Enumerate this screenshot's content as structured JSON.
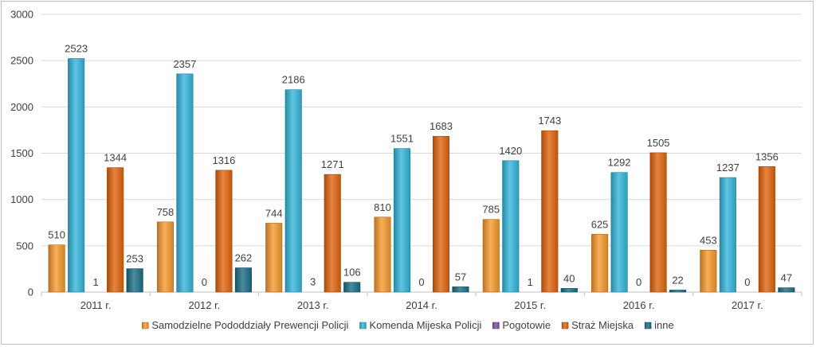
{
  "chart_data": {
    "type": "bar",
    "title": "",
    "xlabel": "",
    "ylabel": "",
    "ylim": [
      0,
      3000
    ],
    "yticks": [
      0,
      500,
      1000,
      1500,
      2000,
      2500,
      3000
    ],
    "grid": true,
    "legend_position": "bottom",
    "categories": [
      "2011 r.",
      "2012 r.",
      "2013 r.",
      "2014 r.",
      "2015 r.",
      "2016 r.",
      "2017 r."
    ],
    "series": [
      {
        "name": "Samodzielne Pododdziały Prewencji Policji",
        "color": "#f79a2e",
        "values": [
          510,
          758,
          744,
          810,
          785,
          625,
          453
        ]
      },
      {
        "name": "Komenda Mijeska Policji",
        "color": "#35b6dc",
        "values": [
          2523,
          2357,
          2186,
          1551,
          1420,
          1292,
          1237
        ]
      },
      {
        "name": "Pogotowie",
        "color": "#7f4fa8",
        "values": [
          1,
          0,
          3,
          0,
          1,
          0,
          0
        ]
      },
      {
        "name": "Straż Miejska",
        "color": "#e2650f",
        "values": [
          1344,
          1316,
          1271,
          1683,
          1743,
          1505,
          1356
        ]
      },
      {
        "name": "inne",
        "color": "#1b6f88",
        "values": [
          253,
          262,
          106,
          57,
          40,
          22,
          47
        ]
      }
    ]
  }
}
